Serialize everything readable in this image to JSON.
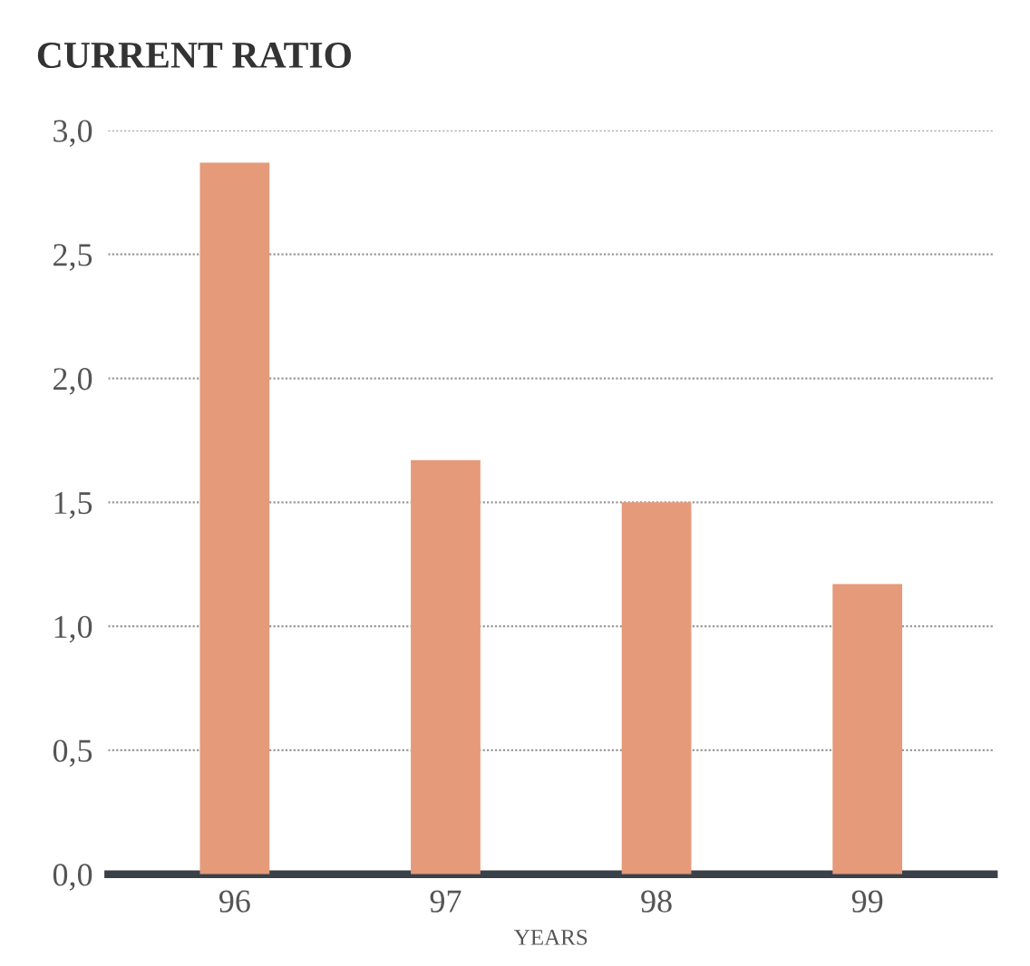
{
  "chart_data": {
    "type": "bar",
    "title": "CURRENT RATIO",
    "xlabel": "YEARS",
    "categories": [
      "96",
      "97",
      "98",
      "99"
    ],
    "values": [
      2.87,
      1.67,
      1.5,
      1.17
    ],
    "color": "#e59a7a",
    "ylim": [
      0,
      3
    ],
    "yticks": [
      {
        "value": 0,
        "label": "0,0"
      },
      {
        "value": 0.5,
        "label": "0,5"
      },
      {
        "value": 1,
        "label": "1,0"
      },
      {
        "value": 1.5,
        "label": "1,5"
      },
      {
        "value": 2,
        "label": "2,0"
      },
      {
        "value": 2.5,
        "label": "2,5"
      },
      {
        "value": 3,
        "label": "3,0"
      }
    ],
    "grid": "y"
  }
}
